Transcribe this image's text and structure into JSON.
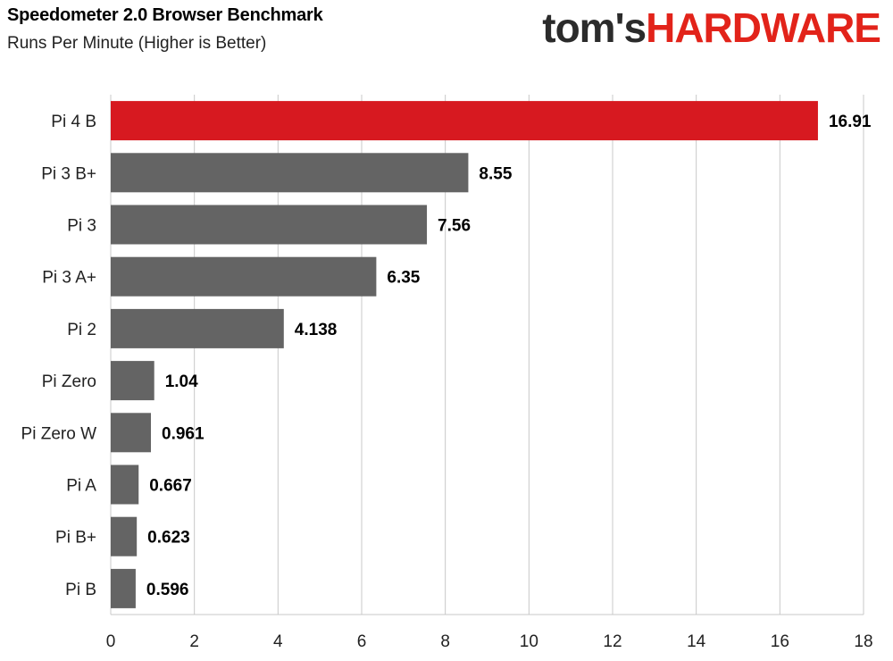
{
  "header": {
    "title": "Speedometer 2.0 Browser Benchmark",
    "subtitle": "Runs Per Minute  (Higher is Better)",
    "brand_part1": "tom's",
    "brand_part2": "HARDWARE"
  },
  "colors": {
    "highlight": "#d71920",
    "bar": "#646464",
    "grid": "#c8c8c8",
    "brand_red": "#e2231a"
  },
  "chart_data": {
    "type": "bar",
    "orientation": "horizontal",
    "categories": [
      "Pi 4 B",
      "Pi 3 B+",
      "Pi 3",
      "Pi 3 A+",
      "Pi 2",
      "Pi Zero",
      "Pi Zero W",
      "Pi A",
      "Pi B+",
      "Pi B"
    ],
    "values": [
      16.91,
      8.55,
      7.56,
      6.35,
      4.138,
      1.04,
      0.961,
      0.667,
      0.623,
      0.596
    ],
    "value_labels": [
      "16.91",
      "8.55",
      "7.56",
      "6.35",
      "4.138",
      "1.04",
      "0.961",
      "0.667",
      "0.623",
      "0.596"
    ],
    "highlight_index": 0,
    "xlim": [
      0,
      18
    ],
    "xticks": [
      0,
      2,
      4,
      6,
      8,
      10,
      12,
      14,
      16,
      18
    ],
    "grid": true
  }
}
